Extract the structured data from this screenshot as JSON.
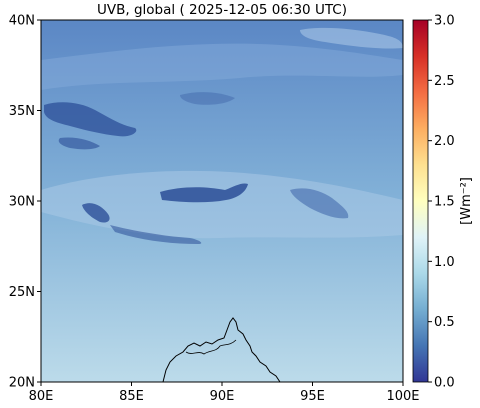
{
  "map": {
    "title": "UVB, global ( 2025-12-05 06:30 UTC)",
    "extent": {
      "lon": [
        80,
        100
      ],
      "lat": [
        20,
        40
      ]
    },
    "x_ticks": [
      {
        "value": 80,
        "label": "80E"
      },
      {
        "value": 85,
        "label": "85E"
      },
      {
        "value": 90,
        "label": "90E"
      },
      {
        "value": 95,
        "label": "95E"
      },
      {
        "value": 100,
        "label": "100E"
      }
    ],
    "y_ticks": [
      {
        "value": 20,
        "label": "20N"
      },
      {
        "value": 25,
        "label": "25N"
      },
      {
        "value": 30,
        "label": "30N"
      },
      {
        "value": 35,
        "label": "35N"
      },
      {
        "value": 40,
        "label": "40N"
      }
    ]
  },
  "colorbar": {
    "label": "[Wm⁻²]",
    "range": [
      0,
      3
    ],
    "colormap": "RdYlBu_r",
    "ticks": [
      {
        "value": 0.0,
        "label": "0.0"
      },
      {
        "value": 0.5,
        "label": "0.5"
      },
      {
        "value": 1.0,
        "label": "1.0"
      },
      {
        "value": 1.5,
        "label": "1.5"
      },
      {
        "value": 2.0,
        "label": "2.0"
      },
      {
        "value": 2.5,
        "label": "2.5"
      },
      {
        "value": 3.0,
        "label": "3.0"
      }
    ],
    "colors": [
      "#313695",
      "#4575b4",
      "#74add1",
      "#abd9e9",
      "#e0f3f8",
      "#ffffbf",
      "#fee090",
      "#fdae61",
      "#f46d43",
      "#d73027",
      "#a50026"
    ]
  },
  "field": {
    "north_color": "#5b87c5",
    "south_color": "#bcdbea",
    "cloud_color": "#2c4f98"
  }
}
